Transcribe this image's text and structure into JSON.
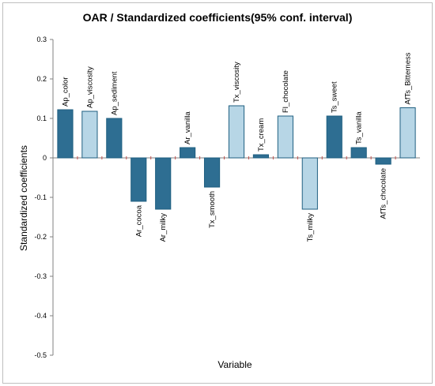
{
  "chart_data": {
    "type": "bar",
    "title": "OAR / Standardized coefficients(95% conf. interval)",
    "xlabel": "Variable",
    "ylabel": "Standardized coefficients",
    "ylim": [
      -0.5,
      0.3
    ],
    "yticks": [
      0.3,
      0.2,
      0.1,
      0,
      -0.1,
      -0.2,
      -0.3,
      -0.4,
      -0.5
    ],
    "ytick_labels": [
      "0.3",
      "0.2",
      "0.1",
      "0",
      "-0.1",
      "-0.2",
      "-0.3",
      "-0.4",
      "-0.5"
    ],
    "grid": false,
    "legend": "none",
    "colors": {
      "significant_fill": "#2e6e92",
      "nonsignificant_fill": "#b7d6e6",
      "bar_edge": "#1f5f80",
      "axis": "#808080",
      "zero_tick": "#c0504d"
    },
    "categories": [
      "Ap_color",
      "Ap_viscosity",
      "Ap_sediment",
      "Ar_cocoa",
      "Ar_milky",
      "Ar_vanilla",
      "Tx_smooth",
      "Tx_viscosity",
      "Tx_cream",
      "Fl_chocolate",
      "Ts_milky",
      "Ts_sweet",
      "Ts_vanilla",
      "AfTs_chocolate",
      "AfTs_Bitterness"
    ],
    "values": [
      0.122,
      0.118,
      0.1,
      -0.11,
      -0.13,
      0.026,
      -0.074,
      0.132,
      0.008,
      0.106,
      -0.13,
      0.106,
      0.026,
      -0.016,
      0.127
    ],
    "significant": [
      true,
      false,
      true,
      true,
      true,
      true,
      true,
      false,
      true,
      false,
      false,
      true,
      true,
      true,
      false
    ]
  }
}
